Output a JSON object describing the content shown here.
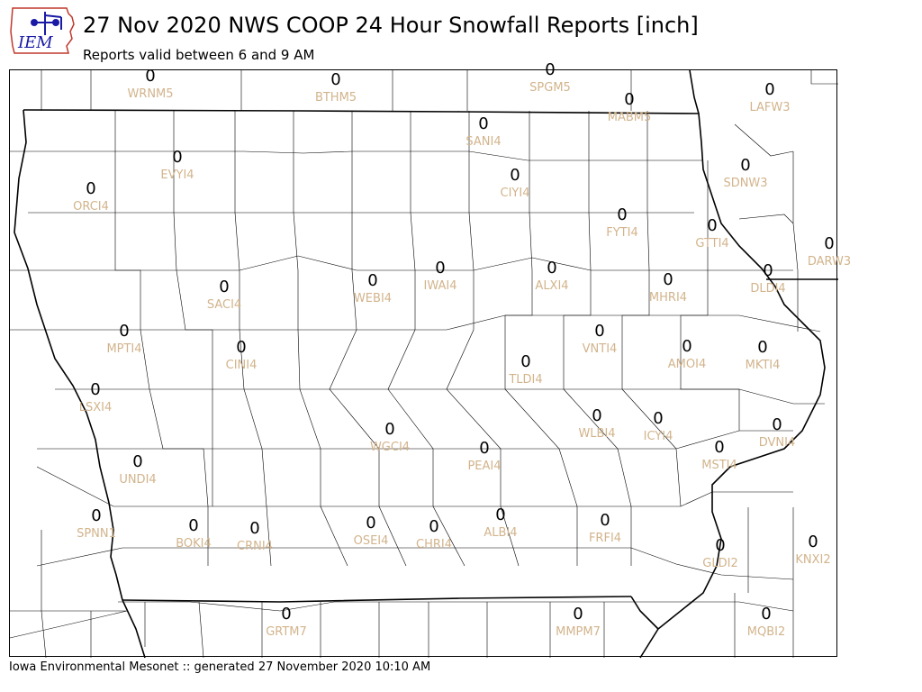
{
  "title": "27 Nov 2020 NWS COOP 24 Hour Snowfall Reports [inch]",
  "subtitle": "Reports valid between 6 and 9 AM",
  "footer": "Iowa Environmental Mesonet :: generated 27 November 2020 10:10 AM",
  "logo": {
    "text": "IEM"
  },
  "colors": {
    "value": "#000000",
    "station": "#d2b48c",
    "border": "#000000",
    "state_border": "#000000"
  },
  "stations": [
    {
      "id": "WRNM5",
      "value": "0"
    },
    {
      "id": "BTHM5",
      "value": "0"
    },
    {
      "id": "SPGM5",
      "value": "0"
    },
    {
      "id": "MABM5",
      "value": "0"
    },
    {
      "id": "LAFW3",
      "value": "0"
    },
    {
      "id": "SANI4",
      "value": "0"
    },
    {
      "id": "EVYI4",
      "value": "0"
    },
    {
      "id": "ORCI4",
      "value": "0"
    },
    {
      "id": "CIYI4",
      "value": "0"
    },
    {
      "id": "SDNW3",
      "value": "0"
    },
    {
      "id": "FYTI4",
      "value": "0"
    },
    {
      "id": "GTTI4",
      "value": "0"
    },
    {
      "id": "DARW3",
      "value": "0"
    },
    {
      "id": "SACI4",
      "value": "0"
    },
    {
      "id": "WEBI4",
      "value": "0"
    },
    {
      "id": "IWAI4",
      "value": "0"
    },
    {
      "id": "ALXI4",
      "value": "0"
    },
    {
      "id": "MHRI4",
      "value": "0"
    },
    {
      "id": "DLDI4",
      "value": "0"
    },
    {
      "id": "MPTI4",
      "value": "0"
    },
    {
      "id": "CINI4",
      "value": "0"
    },
    {
      "id": "VNTI4",
      "value": "0"
    },
    {
      "id": "AMOI4",
      "value": "0"
    },
    {
      "id": "MKTI4",
      "value": "0"
    },
    {
      "id": "TLDI4",
      "value": "0"
    },
    {
      "id": "LSXI4",
      "value": "0"
    },
    {
      "id": "WGCI4",
      "value": "0"
    },
    {
      "id": "WLBI4",
      "value": "0"
    },
    {
      "id": "ICYI4",
      "value": "0"
    },
    {
      "id": "DVNI4",
      "value": "0"
    },
    {
      "id": "PEAI4",
      "value": "0"
    },
    {
      "id": "MSTI4",
      "value": "0"
    },
    {
      "id": "UNDI4",
      "value": "0"
    },
    {
      "id": "SPNN1",
      "value": "0"
    },
    {
      "id": "BOKI4",
      "value": "0"
    },
    {
      "id": "CRNI4",
      "value": "0"
    },
    {
      "id": "OSEI4",
      "value": "0"
    },
    {
      "id": "CHRI4",
      "value": "0"
    },
    {
      "id": "ALBI4",
      "value": "0"
    },
    {
      "id": "FRFI4",
      "value": "0"
    },
    {
      "id": "GLDI2",
      "value": "0"
    },
    {
      "id": "KNXI2",
      "value": "0"
    },
    {
      "id": "GRTM7",
      "value": "0"
    },
    {
      "id": "MMPM7",
      "value": "0"
    },
    {
      "id": "MQBI2",
      "value": "0"
    }
  ]
}
